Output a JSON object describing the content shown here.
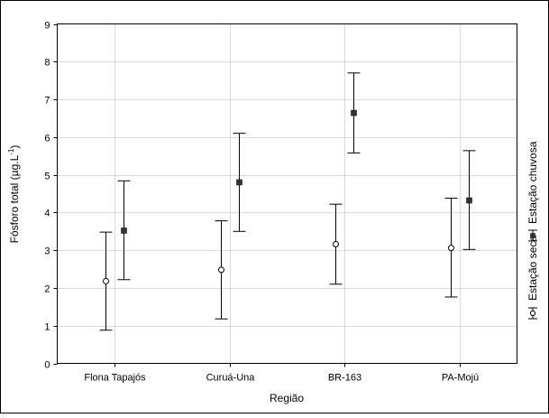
{
  "chart_data": {
    "type": "errorbar",
    "title": "",
    "xlabel": "Região",
    "ylabel_main": "Fósforo total (µg.L",
    "ylabel_exp": "-1",
    "ylabel_close": ")",
    "ylim": [
      0,
      9
    ],
    "yticks": [
      "0",
      "1",
      "2",
      "3",
      "4",
      "5",
      "6",
      "7",
      "8",
      "9"
    ],
    "categories": [
      "Flona Tapajós",
      "Curuá-Una",
      "BR-163",
      "PA-Mojú"
    ],
    "grid": true,
    "legend_position": "right, rotated vertical",
    "series": [
      {
        "name": "Estação seca",
        "marker": "open-circle",
        "mean": [
          2.18,
          2.48,
          3.16,
          3.06
        ],
        "lower": [
          0.88,
          1.18,
          2.1,
          1.76
        ],
        "upper": [
          3.48,
          3.78,
          4.22,
          4.38
        ]
      },
      {
        "name": "Estação chuvosa",
        "marker": "filled-square",
        "mean": [
          3.52,
          4.8,
          6.64,
          4.32
        ],
        "lower": [
          2.22,
          3.5,
          5.58,
          3.02
        ],
        "upper": [
          4.84,
          6.1,
          7.7,
          5.64
        ]
      }
    ]
  }
}
